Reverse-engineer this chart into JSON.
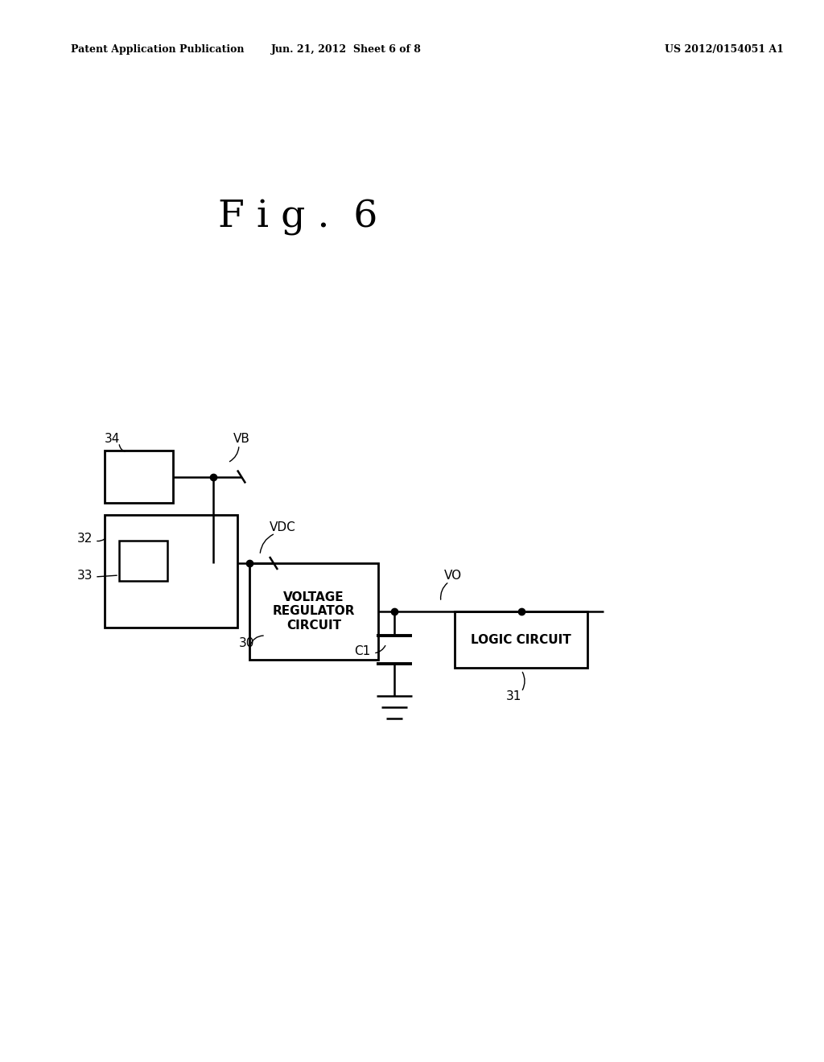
{
  "title": "F i g .  6",
  "header_left": "Patent Application Publication",
  "header_center": "Jun. 21, 2012  Sheet 6 of 8",
  "header_right": "US 2012/0154051 A1",
  "background_color": "#ffffff",
  "line_color": "#000000",
  "figsize": [
    10.24,
    13.2
  ],
  "dpi": 100
}
